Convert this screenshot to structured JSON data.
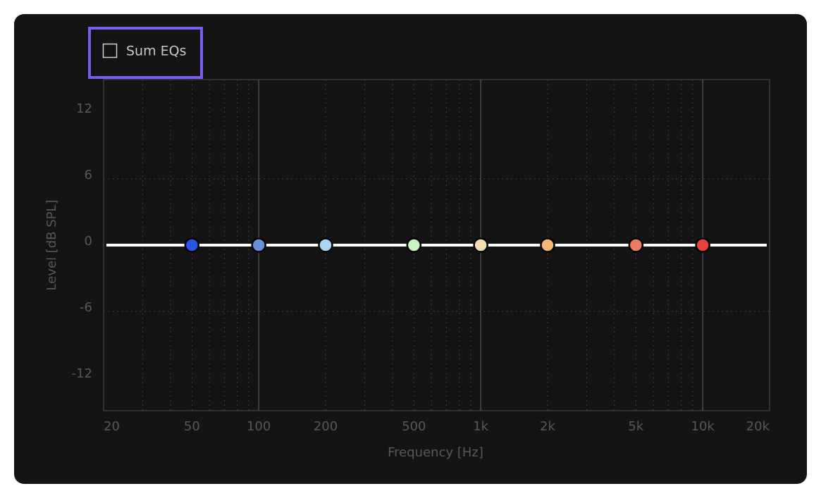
{
  "toggle": {
    "label": "Sum EQs",
    "checked": false
  },
  "chart_data": {
    "type": "eq",
    "xlabel": "Frequency [Hz]",
    "ylabel": "Level [dB SPL]",
    "xscale": "log",
    "xlim": [
      20,
      20000
    ],
    "ylim": [
      -15,
      15
    ],
    "xticks": [
      20,
      50,
      100,
      200,
      500,
      {
        "value": 1000,
        "label": "1k"
      },
      {
        "value": 2000,
        "label": "2k"
      },
      {
        "value": 5000,
        "label": "5k"
      },
      {
        "value": 10000,
        "label": "10k"
      },
      {
        "value": 20000,
        "label": "20k"
      }
    ],
    "yticks": [
      -12,
      -6,
      0,
      6,
      12
    ],
    "x_major_grid": [
      100,
      1000,
      10000
    ],
    "x_minor_grid": [
      30,
      40,
      50,
      60,
      70,
      80,
      90,
      200,
      300,
      400,
      500,
      600,
      700,
      800,
      900,
      2000,
      3000,
      4000,
      5000,
      6000,
      7000,
      8000,
      9000
    ],
    "y_grid": [
      -6,
      6
    ],
    "curve": {
      "x": [
        20,
        20000
      ],
      "values": [
        0,
        0
      ],
      "color": "#ffffff"
    },
    "bands": [
      {
        "freq": 50,
        "gain": 0,
        "color": "#2b55e6"
      },
      {
        "freq": 100,
        "gain": 0,
        "color": "#6a8fd8"
      },
      {
        "freq": 200,
        "gain": 0,
        "color": "#a8d6f5"
      },
      {
        "freq": 500,
        "gain": 0,
        "color": "#c9f5c0"
      },
      {
        "freq": 1000,
        "gain": 0,
        "color": "#f5dcb0"
      },
      {
        "freq": 2000,
        "gain": 0,
        "color": "#f4b870"
      },
      {
        "freq": 5000,
        "gain": 0,
        "color": "#ee7c62"
      },
      {
        "freq": 10000,
        "gain": 0,
        "color": "#e6413c"
      }
    ]
  }
}
